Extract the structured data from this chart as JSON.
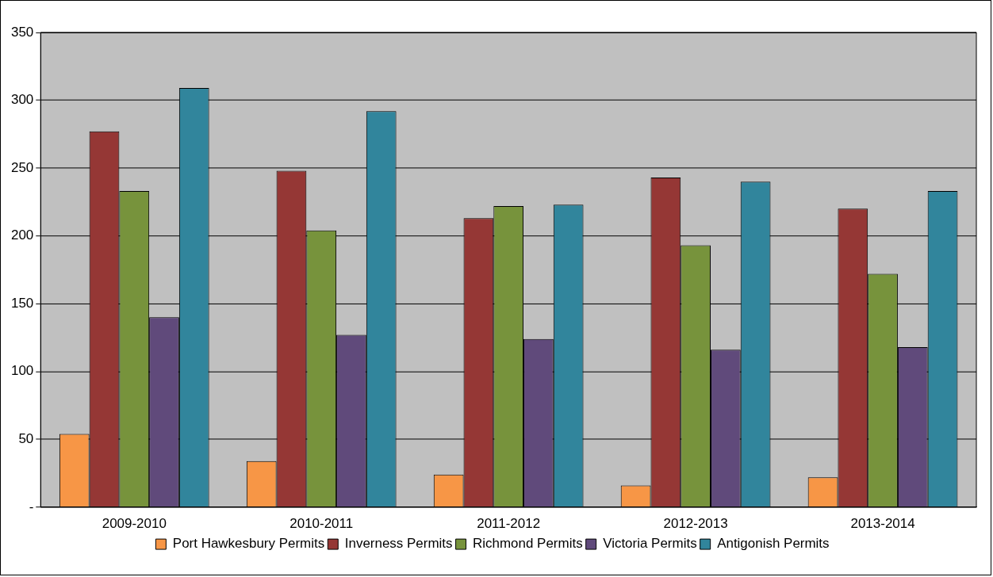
{
  "chart_data": {
    "type": "bar",
    "categories": [
      "2009-2010",
      "2010-2011",
      "2011-2012",
      "2012-2013",
      "2013-2014"
    ],
    "series": [
      {
        "name": "Port Hawkesbury Permits",
        "color": "#f79646",
        "values": [
          54,
          34,
          24,
          16,
          22
        ]
      },
      {
        "name": "Inverness Permits",
        "color": "#953735",
        "values": [
          277,
          248,
          213,
          243,
          220
        ]
      },
      {
        "name": "Richmond Permits",
        "color": "#77933c",
        "values": [
          233,
          204,
          222,
          193,
          172
        ]
      },
      {
        "name": "Victoria Permits",
        "color": "#604a7b",
        "values": [
          140,
          127,
          124,
          116,
          118
        ]
      },
      {
        "name": "Antigonish Permits",
        "color": "#31859c",
        "values": [
          309,
          292,
          223,
          240,
          233
        ]
      }
    ],
    "ylim": [
      0,
      350
    ],
    "yticks": [
      {
        "value": 0,
        "label": "-"
      },
      50,
      100,
      150,
      200,
      250,
      300,
      350
    ],
    "grid": "y",
    "legend": "bottom"
  }
}
